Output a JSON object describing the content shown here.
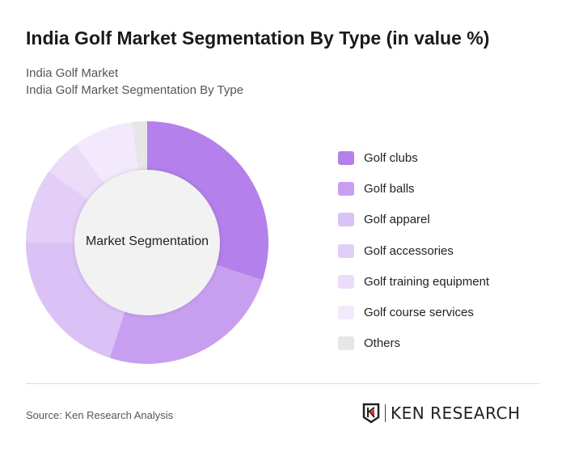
{
  "title": "India Golf Market Segmentation By Type (in value %)",
  "subtitle1": "India Golf Market",
  "subtitle2": "India Golf Market Segmentation By Type",
  "source": "Source: Ken Research Analysis",
  "logo_text": "KEN RESEARCH",
  "chart_data": {
    "type": "pie",
    "variant": "donut",
    "center_label": "Market Segmentation",
    "legend_position": "right",
    "categories": [
      "Golf clubs",
      "Golf balls",
      "Golf apparel",
      "Golf accessories",
      "Golf training equipment",
      "Golf course services",
      "Others"
    ],
    "values": [
      30,
      25,
      20,
      10,
      5,
      8,
      2
    ],
    "colors": [
      "#b480eb",
      "#c89ff0",
      "#dbc2f6",
      "#e2cef7",
      "#ebdcfa",
      "#f2eafc",
      "#e6e6e6"
    ]
  }
}
